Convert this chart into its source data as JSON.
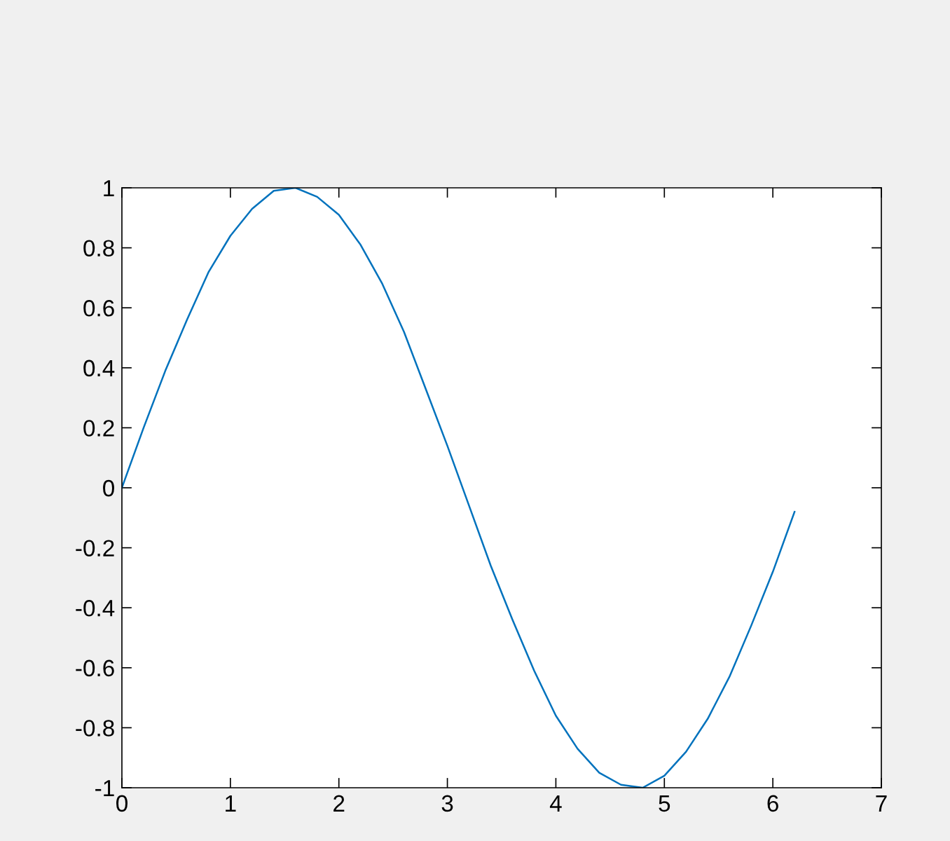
{
  "chart_data": {
    "type": "line",
    "x": [
      0,
      0.2,
      0.4,
      0.6,
      0.8,
      1.0,
      1.2,
      1.4,
      1.6,
      1.8,
      2.0,
      2.2,
      2.4,
      2.6,
      2.8,
      3.0,
      3.2,
      3.4,
      3.6,
      3.8,
      4.0,
      4.2,
      4.4,
      4.6,
      4.8,
      5.0,
      5.2,
      5.4,
      5.6,
      5.8,
      6.0,
      6.2
    ],
    "series": [
      {
        "color": "#0072bd",
        "values": [
          0,
          0.2,
          0.39,
          0.56,
          0.72,
          0.84,
          0.93,
          0.99,
          1.0,
          0.97,
          0.91,
          0.81,
          0.68,
          0.52,
          0.33,
          0.14,
          -0.06,
          -0.26,
          -0.44,
          -0.61,
          -0.76,
          -0.87,
          -0.95,
          -0.99,
          -1.0,
          -0.96,
          -0.88,
          -0.77,
          -0.63,
          -0.46,
          -0.28,
          -0.08
        ]
      }
    ],
    "xlim": [
      0,
      7
    ],
    "xticks": [
      0,
      1,
      2,
      3,
      4,
      5,
      6,
      7
    ],
    "ylim": [
      -1,
      1
    ],
    "yticks": [
      -1,
      -0.8,
      -0.6,
      -0.4,
      -0.2,
      0,
      0.2,
      0.4,
      0.6,
      0.8,
      1
    ],
    "marker": "none",
    "line_style": "solid"
  }
}
